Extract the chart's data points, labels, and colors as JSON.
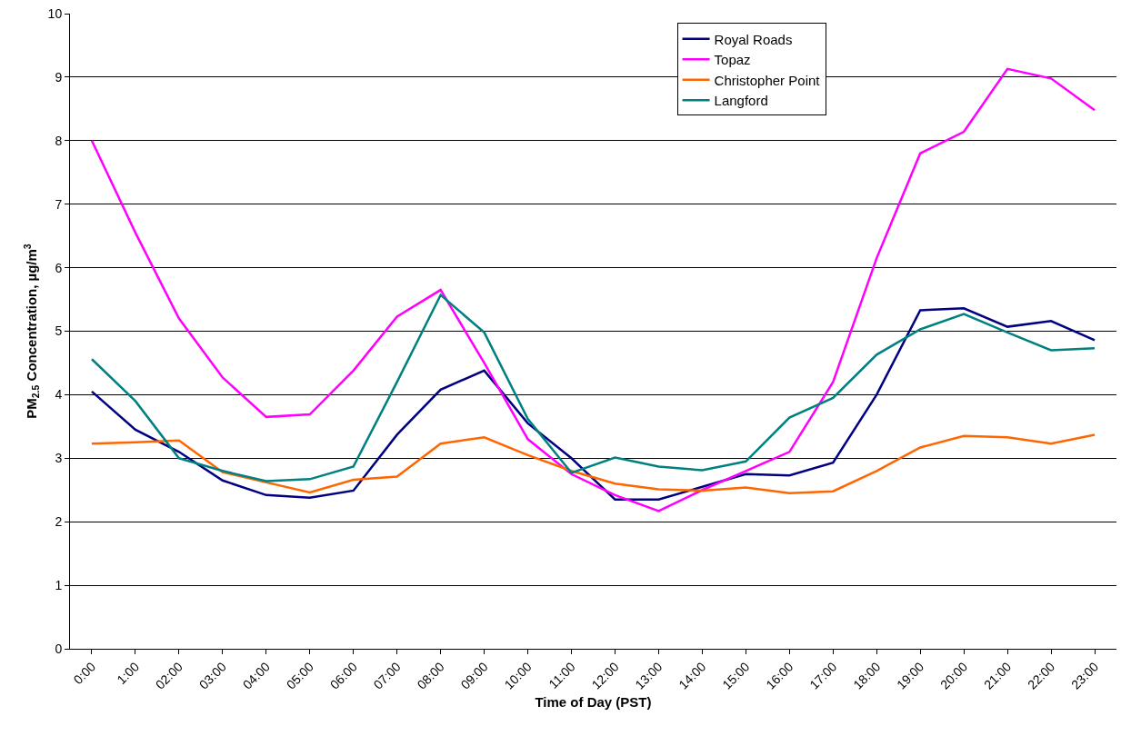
{
  "chart_data": {
    "type": "line",
    "xlabel": "Time of Day (PST)",
    "ylabel": "PM$_{2.5}$ Concentration, µg/m$^{3}$",
    "categories": [
      "0:00",
      "1:00",
      "02:00",
      "03:00",
      "04:00",
      "05:00",
      "06:00",
      "07:00",
      "08:00",
      "09:00",
      "10:00",
      "11:00",
      "12:00",
      "13:00",
      "14:00",
      "15:00",
      "16:00",
      "17:00",
      "18:00",
      "19:00",
      "20:00",
      "21:00",
      "22:00",
      "23:00"
    ],
    "series": [
      {
        "name": "Royal Roads",
        "color": "#000080",
        "values": [
          4.05,
          3.45,
          3.1,
          2.65,
          2.42,
          2.38,
          2.49,
          3.37,
          4.08,
          4.38,
          3.55,
          3.0,
          2.35,
          2.35,
          2.55,
          2.75,
          2.73,
          2.93,
          4.0,
          5.33,
          5.36,
          5.07,
          5.16,
          4.86
        ]
      },
      {
        "name": "Topaz",
        "color": "#ff00ff",
        "values": [
          8.0,
          6.55,
          5.2,
          4.27,
          3.65,
          3.69,
          4.38,
          5.23,
          5.65,
          4.5,
          3.3,
          2.75,
          2.42,
          2.17,
          2.5,
          2.8,
          3.1,
          4.2,
          6.15,
          7.8,
          8.14,
          9.13,
          8.98,
          8.48
        ]
      },
      {
        "name": "Christopher Point",
        "color": "#ff6600",
        "values": [
          3.23,
          3.25,
          3.28,
          2.78,
          2.62,
          2.46,
          2.66,
          2.71,
          3.23,
          3.33,
          3.05,
          2.8,
          2.6,
          2.51,
          2.49,
          2.54,
          2.45,
          2.48,
          2.8,
          3.17,
          3.35,
          3.33,
          3.23,
          3.37
        ]
      },
      {
        "name": "Langford",
        "color": "#008080",
        "values": [
          4.56,
          3.9,
          3.0,
          2.8,
          2.64,
          2.67,
          2.87,
          4.2,
          5.57,
          4.98,
          3.62,
          2.77,
          3.01,
          2.87,
          2.81,
          2.95,
          3.64,
          3.95,
          4.63,
          5.03,
          5.27,
          4.98,
          4.7,
          4.73
        ]
      }
    ],
    "ylim": [
      0,
      10
    ],
    "yticks": [
      0,
      1,
      2,
      3,
      4,
      5,
      6,
      7,
      8,
      9,
      10
    ],
    "grid": "y",
    "legend": "top right",
    "marker": "none",
    "line_style": "solid"
  }
}
